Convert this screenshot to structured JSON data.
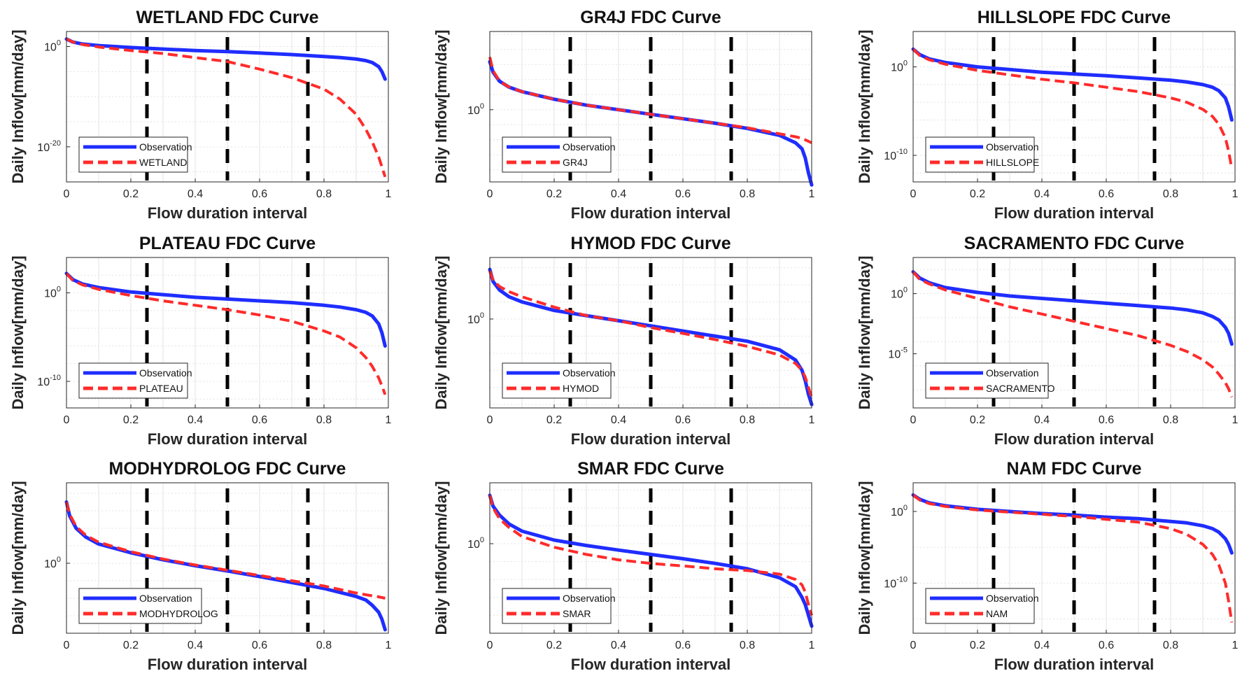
{
  "figure": {
    "xlabel": "Flow duration interval",
    "ylabel": "Daily Inflow[mm/day]",
    "x_ticks": [
      "0",
      "0.2",
      "0.4",
      "0.6",
      "0.8",
      "1"
    ],
    "duration_markers": [
      0.25,
      0.5,
      0.75
    ],
    "colors": {
      "observation": "#1f2dff",
      "model": "#ff2b2b",
      "markers": "#000000",
      "grid": "#e3e3e3"
    },
    "observation_label": "Observation"
  },
  "chart_data": [
    {
      "type": "line",
      "title": "WETLAND FDC Curve",
      "xlabel": "Flow duration interval",
      "ylabel": "Daily Inflow[mm/day]",
      "xlim": [
        0,
        1
      ],
      "ylim_log10": [
        -27,
        3
      ],
      "y_scale": "log",
      "y_ticks": [
        {
          "base": "10",
          "exp": "0",
          "log10": 0
        },
        {
          "base": "10",
          "exp": "-20",
          "log10": -20
        }
      ],
      "grid": true,
      "legend_position": "bottom-left",
      "x": [
        0,
        0.02,
        0.05,
        0.1,
        0.2,
        0.3,
        0.4,
        0.5,
        0.6,
        0.7,
        0.8,
        0.85,
        0.9,
        0.93,
        0.95,
        0.97,
        0.98,
        0.99
      ],
      "series": [
        {
          "name": "Observation",
          "log10_values": [
            1.5,
            0.9,
            0.5,
            0.2,
            -0.2,
            -0.5,
            -0.8,
            -1.0,
            -1.3,
            -1.6,
            -2.0,
            -2.2,
            -2.5,
            -2.8,
            -3.2,
            -4.0,
            -5.0,
            -6.5
          ]
        },
        {
          "name": "WETLAND",
          "log10_values": [
            1.5,
            0.9,
            0.4,
            -0.1,
            -0.8,
            -1.4,
            -2.2,
            -3.0,
            -4.5,
            -6.2,
            -8.5,
            -10.5,
            -13.5,
            -16.5,
            -19,
            -22,
            -24,
            -26
          ]
        }
      ]
    },
    {
      "type": "line",
      "title": "GR4J FDC Curve",
      "xlabel": "Flow duration interval",
      "ylabel": "Daily Inflow[mm/day]",
      "xlim": [
        0,
        1
      ],
      "ylim_log10": [
        -2.4,
        2.6
      ],
      "y_scale": "log",
      "y_ticks": [
        {
          "base": "10",
          "exp": "0",
          "log10": 0
        }
      ],
      "grid": true,
      "legend_position": "bottom-left",
      "x": [
        0,
        0.01,
        0.03,
        0.06,
        0.1,
        0.2,
        0.3,
        0.4,
        0.5,
        0.6,
        0.7,
        0.8,
        0.9,
        0.95,
        0.97,
        0.98,
        0.99,
        1.0
      ],
      "series": [
        {
          "name": "Observation",
          "log10_values": [
            1.6,
            1.25,
            0.95,
            0.75,
            0.6,
            0.35,
            0.15,
            0.0,
            -0.15,
            -0.3,
            -0.45,
            -0.62,
            -0.85,
            -1.1,
            -1.3,
            -1.6,
            -2.1,
            -2.5
          ]
        },
        {
          "name": "GR4J",
          "log10_values": [
            1.75,
            1.3,
            0.95,
            0.75,
            0.6,
            0.35,
            0.15,
            0.0,
            -0.15,
            -0.3,
            -0.45,
            -0.6,
            -0.8,
            -0.9,
            -0.95,
            -1.0,
            -1.05,
            -1.1
          ]
        }
      ]
    },
    {
      "type": "line",
      "title": "HILLSLOPE FDC Curve",
      "xlabel": "Flow duration interval",
      "ylabel": "Daily Inflow[mm/day]",
      "xlim": [
        0,
        1
      ],
      "ylim_log10": [
        -13,
        4
      ],
      "y_scale": "log",
      "y_ticks": [
        {
          "base": "10",
          "exp": "0",
          "log10": 0
        },
        {
          "base": "10",
          "exp": "-10",
          "log10": -10
        }
      ],
      "grid": true,
      "legend_position": "bottom-left",
      "x": [
        0,
        0.02,
        0.05,
        0.1,
        0.2,
        0.3,
        0.4,
        0.5,
        0.6,
        0.7,
        0.8,
        0.85,
        0.9,
        0.93,
        0.95,
        0.97,
        0.98,
        0.99
      ],
      "series": [
        {
          "name": "Observation",
          "log10_values": [
            2.0,
            1.4,
            0.9,
            0.5,
            0.0,
            -0.3,
            -0.6,
            -0.8,
            -1.0,
            -1.25,
            -1.5,
            -1.7,
            -2.0,
            -2.3,
            -2.7,
            -3.5,
            -4.5,
            -6.0
          ]
        },
        {
          "name": "HILLSLOPE",
          "log10_values": [
            2.0,
            1.3,
            0.8,
            0.3,
            -0.4,
            -0.9,
            -1.4,
            -1.8,
            -2.3,
            -2.8,
            -3.5,
            -4.0,
            -4.8,
            -5.6,
            -6.5,
            -8.0,
            -9.5,
            -11.5
          ]
        }
      ]
    },
    {
      "type": "line",
      "title": "PLATEAU FDC Curve",
      "xlabel": "Flow duration interval",
      "ylabel": "Daily Inflow[mm/day]",
      "xlim": [
        0,
        1
      ],
      "ylim_log10": [
        -13,
        4
      ],
      "y_scale": "log",
      "y_ticks": [
        {
          "base": "10",
          "exp": "0",
          "log10": 0
        },
        {
          "base": "10",
          "exp": "-10",
          "log10": -10
        }
      ],
      "grid": true,
      "legend_position": "bottom-left",
      "x": [
        0,
        0.02,
        0.05,
        0.1,
        0.2,
        0.3,
        0.4,
        0.5,
        0.6,
        0.7,
        0.8,
        0.85,
        0.9,
        0.93,
        0.95,
        0.97,
        0.98,
        0.99
      ],
      "series": [
        {
          "name": "Observation",
          "log10_values": [
            2.2,
            1.5,
            1.0,
            0.6,
            0.1,
            -0.2,
            -0.5,
            -0.7,
            -0.9,
            -1.1,
            -1.4,
            -1.6,
            -1.9,
            -2.2,
            -2.6,
            -3.5,
            -4.5,
            -6.0
          ]
        },
        {
          "name": "PLATEAU",
          "log10_values": [
            2.2,
            1.4,
            0.9,
            0.4,
            -0.3,
            -0.9,
            -1.4,
            -1.9,
            -2.5,
            -3.2,
            -4.3,
            -5.0,
            -6.2,
            -7.3,
            -8.3,
            -9.6,
            -10.5,
            -11.5
          ]
        }
      ]
    },
    {
      "type": "line",
      "title": "HYMOD FDC Curve",
      "xlabel": "Flow duration interval",
      "ylabel": "Daily Inflow[mm/day]",
      "xlim": [
        0,
        1
      ],
      "ylim_log10": [
        -2.6,
        1.8
      ],
      "y_scale": "log",
      "y_ticks": [
        {
          "base": "10",
          "exp": "0",
          "log10": 0
        }
      ],
      "grid": true,
      "legend_position": "bottom-left",
      "x": [
        0,
        0.01,
        0.03,
        0.06,
        0.1,
        0.2,
        0.3,
        0.4,
        0.5,
        0.6,
        0.7,
        0.8,
        0.9,
        0.95,
        0.97,
        0.98,
        0.99,
        1.0
      ],
      "series": [
        {
          "name": "Observation",
          "log10_values": [
            1.45,
            1.1,
            0.85,
            0.65,
            0.5,
            0.25,
            0.1,
            -0.05,
            -0.2,
            -0.35,
            -0.5,
            -0.65,
            -0.9,
            -1.2,
            -1.5,
            -1.8,
            -2.2,
            -2.5
          ]
        },
        {
          "name": "HYMOD",
          "log10_values": [
            1.4,
            1.15,
            0.95,
            0.8,
            0.65,
            0.35,
            0.1,
            -0.05,
            -0.25,
            -0.42,
            -0.6,
            -0.8,
            -1.05,
            -1.3,
            -1.5,
            -1.7,
            -2.0,
            -2.3
          ]
        }
      ]
    },
    {
      "type": "line",
      "title": "SACRAMENTO FDC Curve",
      "xlabel": "Flow duration interval",
      "ylabel": "Daily Inflow[mm/day]",
      "xlim": [
        0,
        1
      ],
      "ylim_log10": [
        -9.5,
        3
      ],
      "y_scale": "log",
      "y_ticks": [
        {
          "base": "10",
          "exp": "0",
          "log10": 0
        },
        {
          "base": "10",
          "exp": "-5",
          "log10": -5
        }
      ],
      "grid": true,
      "legend_position": "bottom-left",
      "x": [
        0,
        0.02,
        0.05,
        0.1,
        0.2,
        0.3,
        0.4,
        0.5,
        0.6,
        0.7,
        0.8,
        0.85,
        0.9,
        0.93,
        0.95,
        0.97,
        0.98,
        0.99
      ],
      "series": [
        {
          "name": "Observation",
          "log10_values": [
            1.8,
            1.3,
            0.9,
            0.5,
            0.1,
            -0.2,
            -0.4,
            -0.6,
            -0.8,
            -1.0,
            -1.2,
            -1.35,
            -1.6,
            -1.9,
            -2.2,
            -2.8,
            -3.3,
            -4.2
          ]
        },
        {
          "name": "SACRAMENTO",
          "log10_values": [
            1.8,
            1.2,
            0.8,
            0.3,
            -0.4,
            -1.1,
            -1.7,
            -2.3,
            -2.9,
            -3.5,
            -4.3,
            -4.8,
            -5.5,
            -6.1,
            -6.7,
            -7.4,
            -7.9,
            -8.6
          ]
        }
      ]
    },
    {
      "type": "line",
      "title": "MODHYDROLOG FDC Curve",
      "xlabel": "Flow duration interval",
      "ylabel": "Daily Inflow[mm/day]",
      "xlim": [
        0,
        1
      ],
      "ylim_log10": [
        -2.0,
        2.3
      ],
      "y_scale": "log",
      "y_ticks": [
        {
          "base": "10",
          "exp": "0",
          "log10": 0
        }
      ],
      "grid": true,
      "legend_position": "bottom-left",
      "x": [
        0,
        0.01,
        0.03,
        0.06,
        0.1,
        0.2,
        0.3,
        0.4,
        0.5,
        0.6,
        0.7,
        0.8,
        0.9,
        0.93,
        0.95,
        0.97,
        0.98,
        0.99
      ],
      "series": [
        {
          "name": "Observation",
          "log10_values": [
            1.75,
            1.35,
            1.0,
            0.75,
            0.55,
            0.3,
            0.1,
            -0.07,
            -0.22,
            -0.38,
            -0.55,
            -0.72,
            -0.95,
            -1.05,
            -1.2,
            -1.4,
            -1.6,
            -1.9
          ]
        },
        {
          "name": "MODHYDROLOG",
          "log10_values": [
            1.75,
            1.4,
            1.05,
            0.8,
            0.6,
            0.33,
            0.12,
            -0.05,
            -0.2,
            -0.35,
            -0.5,
            -0.65,
            -0.85,
            -0.9,
            -0.93,
            -0.96,
            -0.98,
            -1.0
          ]
        }
      ]
    },
    {
      "type": "line",
      "title": "SMAR FDC Curve",
      "xlabel": "Flow duration interval",
      "ylabel": "Daily Inflow[mm/day]",
      "xlim": [
        0,
        1
      ],
      "ylim_log10": [
        -2.5,
        1.7
      ],
      "y_scale": "log",
      "y_ticks": [
        {
          "base": "10",
          "exp": "0",
          "log10": 0
        }
      ],
      "grid": true,
      "legend_position": "bottom-left",
      "x": [
        0,
        0.01,
        0.03,
        0.06,
        0.1,
        0.2,
        0.3,
        0.4,
        0.5,
        0.6,
        0.7,
        0.8,
        0.9,
        0.95,
        0.97,
        0.98,
        0.99,
        1.0
      ],
      "series": [
        {
          "name": "Observation",
          "log10_values": [
            1.35,
            1.05,
            0.8,
            0.55,
            0.35,
            0.1,
            -0.05,
            -0.18,
            -0.3,
            -0.42,
            -0.55,
            -0.7,
            -0.95,
            -1.2,
            -1.5,
            -1.7,
            -2.0,
            -2.3
          ]
        },
        {
          "name": "SMAR",
          "log10_values": [
            1.35,
            1.0,
            0.7,
            0.45,
            0.2,
            -0.1,
            -0.3,
            -0.45,
            -0.55,
            -0.62,
            -0.7,
            -0.75,
            -0.85,
            -1.0,
            -1.15,
            -1.35,
            -1.7,
            -2.0
          ]
        }
      ]
    },
    {
      "type": "line",
      "title": "NAM FDC Curve",
      "xlabel": "Flow duration interval",
      "ylabel": "Daily Inflow[mm/day]",
      "xlim": [
        0,
        1
      ],
      "ylim_log10": [
        -17,
        4
      ],
      "y_scale": "log",
      "y_ticks": [
        {
          "base": "10",
          "exp": "0",
          "log10": 0
        },
        {
          "base": "10",
          "exp": "-10",
          "log10": -10
        }
      ],
      "grid": true,
      "legend_position": "bottom-left",
      "x": [
        0,
        0.02,
        0.05,
        0.1,
        0.2,
        0.3,
        0.4,
        0.5,
        0.6,
        0.7,
        0.8,
        0.85,
        0.9,
        0.93,
        0.95,
        0.97,
        0.98,
        0.99
      ],
      "series": [
        {
          "name": "Observation",
          "log10_values": [
            2.3,
            1.7,
            1.2,
            0.8,
            0.3,
            0.0,
            -0.3,
            -0.5,
            -0.8,
            -1.0,
            -1.4,
            -1.6,
            -2.0,
            -2.4,
            -2.9,
            -3.8,
            -4.6,
            -5.8
          ]
        },
        {
          "name": "NAM",
          "log10_values": [
            2.3,
            1.6,
            1.1,
            0.7,
            0.2,
            -0.1,
            -0.4,
            -0.7,
            -1.1,
            -1.5,
            -2.4,
            -3.2,
            -4.6,
            -6.0,
            -7.5,
            -10.0,
            -12.5,
            -15.5
          ]
        }
      ]
    }
  ]
}
